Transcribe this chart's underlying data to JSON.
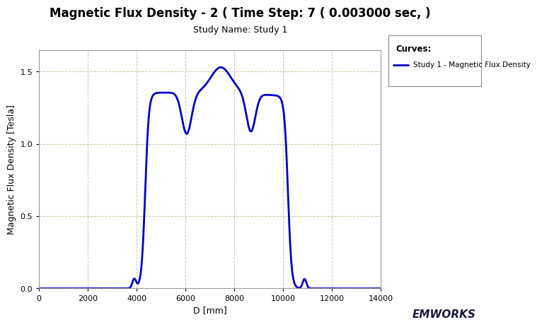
{
  "title": "Magnetic Flux Density - 2 ( Time Step: 7 ( 0.003000 sec, )",
  "subtitle": "Study Name: Study 1",
  "xlabel": "D [mm]",
  "ylabel": "Magnetic Flux Density [Tesla]",
  "legend_title": "Curves:",
  "legend_label": "Study 1 - Magnetic Flux Density",
  "line_color": "#0000CC",
  "line_width": 2.0,
  "xlim": [
    0,
    14000
  ],
  "ylim": [
    0,
    1.65
  ],
  "xticks": [
    0,
    2000,
    4000,
    6000,
    8000,
    10000,
    12000,
    14000
  ],
  "yticks": [
    0,
    0.5,
    1.0,
    1.5
  ],
  "grid_color": "#c8c8a0",
  "grid_linestyle": "--",
  "bg_color": "#ffffff",
  "plot_bg_color": "#ffffff",
  "title_fontsize": 12,
  "subtitle_fontsize": 9,
  "label_fontsize": 9,
  "tick_fontsize": 8,
  "emworks_color": "#1a1a3a"
}
